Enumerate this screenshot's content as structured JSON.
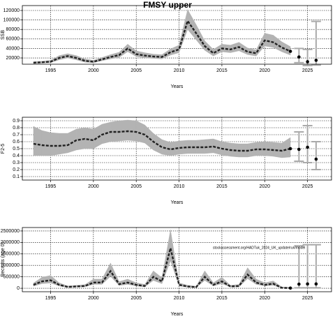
{
  "chart_data": [
    {
      "type": "line",
      "title": "FMSY upper",
      "ylabel": "SSB",
      "xlabel": "Years",
      "x": [
        1993,
        1994,
        1995,
        1996,
        1997,
        1998,
        1999,
        2000,
        2001,
        2002,
        2003,
        2004,
        2005,
        2006,
        2007,
        2008,
        2009,
        2010,
        2011,
        2012,
        2013,
        2014,
        2015,
        2016,
        2017,
        2018,
        2019,
        2020,
        2021,
        2022,
        2023
      ],
      "values": [
        10000,
        11000,
        12000,
        20000,
        24000,
        20000,
        14000,
        12000,
        17000,
        22000,
        26000,
        40000,
        28000,
        25000,
        23000,
        22000,
        32000,
        38000,
        98000,
        72000,
        45000,
        30000,
        40000,
        38000,
        43000,
        33000,
        30000,
        57000,
        53000,
        42000,
        34000
      ],
      "lower": [
        8000,
        9000,
        10000,
        16000,
        20000,
        16000,
        11000,
        10000,
        14000,
        18000,
        21000,
        33000,
        23000,
        20000,
        19000,
        18000,
        26000,
        31000,
        80000,
        58000,
        36000,
        24000,
        33000,
        31000,
        35000,
        27000,
        24000,
        45000,
        42000,
        33000,
        26000
      ],
      "upper": [
        12000,
        13000,
        15000,
        25000,
        29000,
        25000,
        18000,
        15000,
        21000,
        27000,
        32000,
        49000,
        35000,
        31000,
        28000,
        27000,
        39000,
        47000,
        122000,
        90000,
        56000,
        38000,
        49000,
        47000,
        53000,
        41000,
        37000,
        72000,
        68000,
        54000,
        44000
      ],
      "forecast_x": [
        2024,
        2025,
        2026
      ],
      "forecast_values": [
        22000,
        12000,
        15000
      ],
      "forecast_lower": [
        10000,
        4000,
        5000
      ],
      "forecast_upper": [
        40000,
        38000,
        97000
      ],
      "xlim": [
        1991.7,
        2027.8
      ],
      "xticks": [
        1995,
        2000,
        2005,
        2010,
        2015,
        2020,
        2025
      ],
      "ylim": [
        6800,
        130300
      ],
      "yticks": [
        20000,
        40000,
        60000,
        80000,
        100000,
        120000
      ],
      "grid": true
    },
    {
      "type": "line",
      "ylabel": "F2-5",
      "xlabel": "Years",
      "x": [
        1993,
        1994,
        1995,
        1996,
        1997,
        1998,
        1999,
        2000,
        2001,
        2002,
        2003,
        2004,
        2005,
        2006,
        2007,
        2008,
        2009,
        2010,
        2011,
        2012,
        2013,
        2014,
        2015,
        2016,
        2017,
        2018,
        2019,
        2020,
        2021,
        2022,
        2023
      ],
      "values": [
        0.57,
        0.55,
        0.54,
        0.54,
        0.55,
        0.62,
        0.64,
        0.62,
        0.7,
        0.74,
        0.74,
        0.75,
        0.74,
        0.7,
        0.6,
        0.52,
        0.49,
        0.51,
        0.52,
        0.52,
        0.52,
        0.53,
        0.5,
        0.48,
        0.47,
        0.47,
        0.49,
        0.49,
        0.48,
        0.47,
        0.5
      ],
      "lower": [
        0.4,
        0.4,
        0.4,
        0.42,
        0.44,
        0.48,
        0.5,
        0.5,
        0.57,
        0.6,
        0.61,
        0.62,
        0.61,
        0.58,
        0.48,
        0.42,
        0.4,
        0.42,
        0.43,
        0.43,
        0.43,
        0.44,
        0.41,
        0.39,
        0.38,
        0.38,
        0.4,
        0.4,
        0.39,
        0.37,
        0.38
      ],
      "upper": [
        0.82,
        0.76,
        0.73,
        0.72,
        0.72,
        0.78,
        0.8,
        0.78,
        0.85,
        0.88,
        0.9,
        0.91,
        0.9,
        0.84,
        0.72,
        0.63,
        0.59,
        0.61,
        0.62,
        0.62,
        0.63,
        0.64,
        0.6,
        0.58,
        0.57,
        0.57,
        0.59,
        0.6,
        0.59,
        0.58,
        0.66
      ],
      "forecast_x": [
        2024,
        2025,
        2026
      ],
      "forecast_values": [
        0.49,
        0.52,
        0.35
      ],
      "forecast_lower": [
        0.32,
        0.3,
        0.2
      ],
      "forecast_upper": [
        0.74,
        0.83,
        0.6
      ],
      "xlim": [
        1991.7,
        2027.8
      ],
      "xticks": [
        1995,
        2000,
        2005,
        2010,
        2015,
        2020,
        2025
      ],
      "ylim": [
        0.05,
        0.95
      ],
      "yticks": [
        0.1,
        0.2,
        0.3,
        0.4,
        0.5,
        0.6,
        0.7,
        0.8,
        0.9
      ],
      "grid": true
    },
    {
      "type": "line",
      "ylabel": "Recruits (age 0)",
      "xlabel": "Years",
      "annotation": "stockassessment.org/HADTuk_2024_UK_update/run/model",
      "x": [
        1993,
        1994,
        1995,
        1996,
        1997,
        1998,
        1999,
        2000,
        2001,
        2002,
        2003,
        2004,
        2005,
        2006,
        2007,
        2008,
        2009,
        2010,
        2011,
        2012,
        2013,
        2014,
        2015,
        2016,
        2017,
        2018,
        2019,
        2020,
        2021,
        2022,
        2023
      ],
      "values": [
        150000,
        300000,
        350000,
        150000,
        60000,
        80000,
        100000,
        250000,
        250000,
        750000,
        180000,
        250000,
        150000,
        100000,
        500000,
        300000,
        1750000,
        150000,
        80000,
        50000,
        500000,
        150000,
        300000,
        80000,
        100000,
        600000,
        250000,
        150000,
        200000,
        20000,
        10000
      ],
      "lower": [
        90000,
        200000,
        230000,
        100000,
        40000,
        50000,
        60000,
        170000,
        170000,
        520000,
        120000,
        170000,
        100000,
        60000,
        340000,
        200000,
        1200000,
        100000,
        50000,
        30000,
        340000,
        100000,
        200000,
        50000,
        60000,
        420000,
        170000,
        100000,
        130000,
        8000,
        2000
      ],
      "upper": [
        230000,
        480000,
        560000,
        240000,
        100000,
        130000,
        160000,
        400000,
        400000,
        1100000,
        290000,
        400000,
        240000,
        170000,
        760000,
        460000,
        2550000,
        240000,
        130000,
        90000,
        760000,
        240000,
        480000,
        130000,
        170000,
        900000,
        400000,
        240000,
        320000,
        60000,
        40000
      ],
      "forecast_x": [
        2024,
        2025,
        2026
      ],
      "forecast_values": [
        180000,
        190000,
        190000
      ],
      "forecast_lower": [
        20000,
        20000,
        20000
      ],
      "forecast_upper": [
        1850000,
        1900000,
        1900000
      ],
      "xlim": [
        1991.7,
        2027.8
      ],
      "xticks": [
        1995,
        2000,
        2005,
        2010,
        2015,
        2020,
        2025
      ],
      "ylim": [
        -150000,
        2650000
      ],
      "yticks": [
        0,
        500000,
        1000000,
        1500000,
        2000000,
        2500000
      ],
      "grid": true
    }
  ]
}
